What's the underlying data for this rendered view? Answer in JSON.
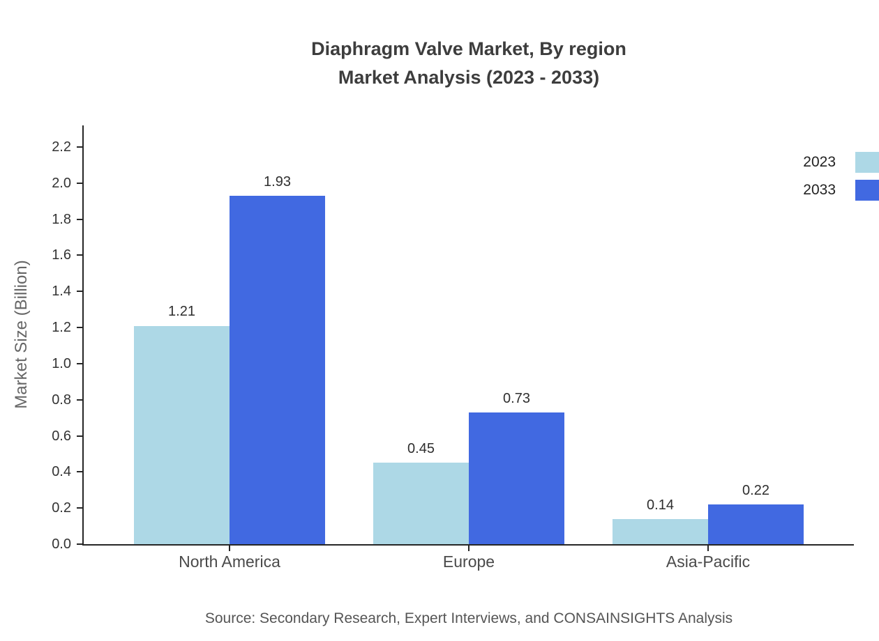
{
  "title": {
    "line1": "Diaphragm Valve Market, By region",
    "line2": "Market Analysis (2023 - 2033)"
  },
  "source": "Source: Secondary Research, Expert Interviews, and CONSAINSIGHTS Analysis",
  "chart_data": {
    "type": "bar",
    "title": "Diaphragm Valve Market, By region — Market Analysis (2023 - 2033)",
    "categories": [
      "North America",
      "Europe",
      "Asia-Pacific"
    ],
    "series": [
      {
        "name": "2023",
        "color": "#add8e6",
        "values": [
          1.21,
          0.45,
          0.14
        ]
      },
      {
        "name": "2033",
        "color": "#4169e1",
        "values": [
          1.93,
          0.73,
          0.22
        ]
      }
    ],
    "xlabel": "",
    "ylabel": "Market Size (Billion)",
    "ylim": [
      0,
      2.2
    ],
    "ytick_step": 0.2,
    "value_label_decimals": 2,
    "grid": false,
    "legend_position": "top-right"
  }
}
